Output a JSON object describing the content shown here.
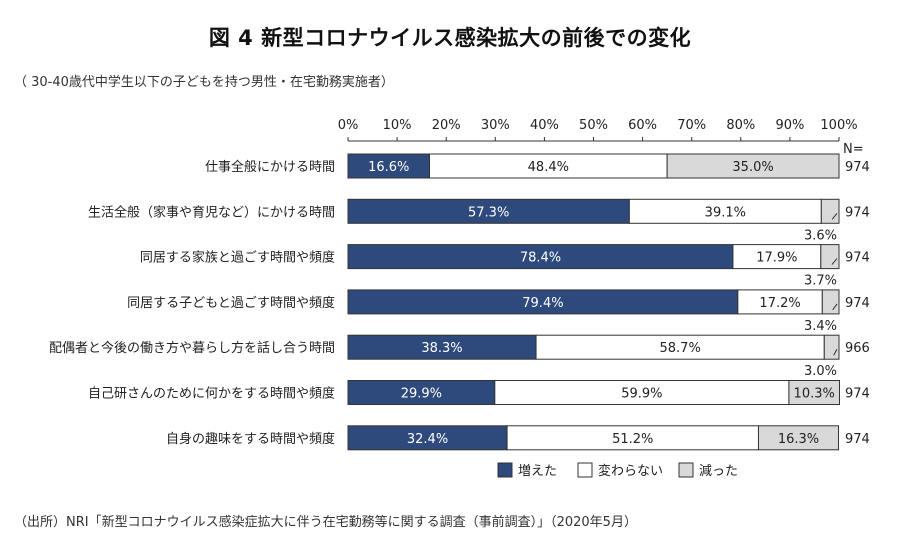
{
  "title": "図 4 新型コロナウイルス感染拡大の前後での変化",
  "subtitle": "（ 30-40歳代中学生以下の子どもを持つ男性・在宅勤務実施者）",
  "source": "（出所）NRI「新型コロナウイルス感染症拡大に伴う在宅勤務等に関する調査（事前調査）」（2020年5月）",
  "colors": {
    "increase": "#2e4a7d",
    "same": "#ffffff",
    "decrease": "#d9d9d9",
    "border": "#333333"
  },
  "chart_data": {
    "type": "bar",
    "orientation": "horizontal-stacked-100",
    "xlim": [
      0,
      100
    ],
    "x_ticks": [
      "0%",
      "10%",
      "20%",
      "30%",
      "40%",
      "50%",
      "60%",
      "70%",
      "80%",
      "90%",
      "100%"
    ],
    "n_header": "N=",
    "categories": [
      "仕事全般にかける時間",
      "生活全般（家事や育児など）にかける時間",
      "同居する家族と過ごす時間や頻度",
      "同居する子どもと過ごす時間や頻度",
      "配偶者と今後の働き方や暮らし方を話し合う時間",
      "自己研さんのために何かをする時間や頻度",
      "自身の趣味をする時間や頻度"
    ],
    "series": [
      {
        "name": "増えた",
        "values": [
          16.6,
          57.3,
          78.4,
          79.4,
          38.3,
          29.9,
          32.4
        ],
        "labels": [
          "16.6%",
          "57.3%",
          "78.4%",
          "79.4%",
          "38.3%",
          "29.9%",
          "32.4%"
        ]
      },
      {
        "name": "変わらない",
        "values": [
          48.4,
          39.1,
          17.9,
          17.2,
          58.7,
          59.9,
          51.2
        ],
        "labels": [
          "48.4%",
          "39.1%",
          "17.9%",
          "17.2%",
          "58.7%",
          "59.9%",
          "51.2%"
        ]
      },
      {
        "name": "減った",
        "values": [
          35.0,
          3.6,
          3.7,
          3.4,
          3.0,
          10.3,
          16.3
        ],
        "labels": [
          "35.0%",
          "3.6%",
          "3.7%",
          "3.4%",
          "3.0%",
          "10.3%",
          "16.3%"
        ]
      }
    ],
    "n": [
      "974",
      "974",
      "974",
      "974",
      "966",
      "974",
      "974"
    ],
    "legend": [
      "増えた",
      "変わらない",
      "減った"
    ]
  }
}
